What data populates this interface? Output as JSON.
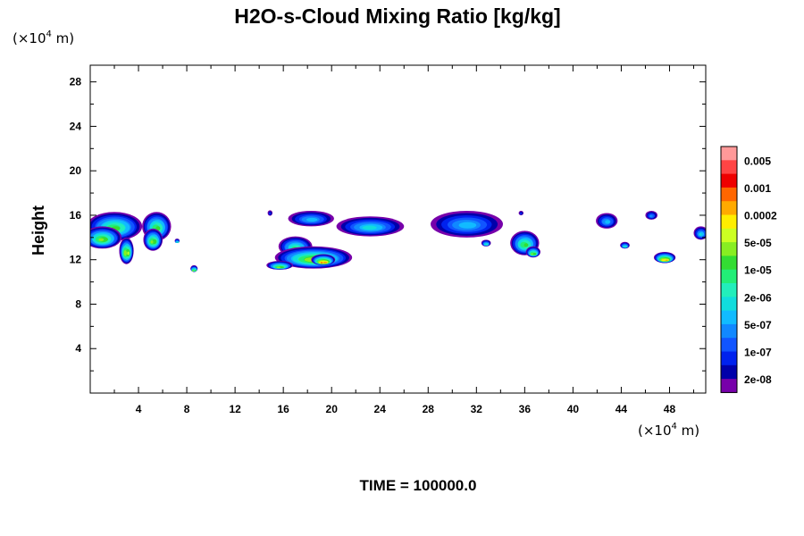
{
  "chart_data": {
    "type": "contour",
    "title": "H2O-s-Cloud Mixing Ratio [kg/kg]",
    "x_unit": {
      "prefix": "(×10",
      "exp": "4",
      "suffix": " m)"
    },
    "y_unit": {
      "prefix": "(×10",
      "exp": "4",
      "suffix": " m)"
    },
    "ylabel": "Height",
    "xlabel": "",
    "xlim": [
      0,
      51
    ],
    "ylim": [
      0,
      29.5
    ],
    "x_ticks": [
      "4",
      "8",
      "12",
      "16",
      "20",
      "24",
      "28",
      "32",
      "36",
      "40",
      "44",
      "48"
    ],
    "x_tick_values": [
      4,
      8,
      12,
      16,
      20,
      24,
      28,
      32,
      36,
      40,
      44,
      48
    ],
    "y_ticks": [
      "4",
      "8",
      "12",
      "16",
      "20",
      "24",
      "28"
    ],
    "y_tick_values": [
      4,
      8,
      12,
      16,
      20,
      24,
      28
    ],
    "time_label": "TIME = 100000.0",
    "legend": {
      "labels": [
        "0.005",
        "0.001",
        "0.0002",
        "5e-05",
        "1e-05",
        "2e-06",
        "5e-07",
        "1e-07",
        "2e-08"
      ],
      "colors": [
        "#ff9999",
        "#ff4444",
        "#ee0000",
        "#ff6600",
        "#ffaa00",
        "#ffee00",
        "#ccff22",
        "#88ee22",
        "#33dd33",
        "#22ee77",
        "#22eebb",
        "#11dddd",
        "#11bbff",
        "#1188ff",
        "#1155ff",
        "#0022ee",
        "#0000aa",
        "#7700aa"
      ]
    },
    "levels": [
      "#7700aa",
      "#0000aa",
      "#0022ee",
      "#1155ff",
      "#1188ff",
      "#11bbff",
      "#11dddd",
      "#22eebb",
      "#22ee77",
      "#33dd33",
      "#88ee22",
      "#ccff22",
      "#ffee00",
      "#ffaa00",
      "#ff6600",
      "#ee0000"
    ],
    "cloud_regions": [
      {
        "x": 2.0,
        "y": 15.0,
        "rx": 2.3,
        "ry": 1.3,
        "peak": 9
      },
      {
        "x": 1.0,
        "y": 14.0,
        "rx": 1.6,
        "ry": 1.0,
        "peak": 10
      },
      {
        "x": 3.0,
        "y": 12.8,
        "rx": 0.6,
        "ry": 1.2,
        "peak": 11
      },
      {
        "x": 5.5,
        "y": 15.0,
        "rx": 1.2,
        "ry": 1.3,
        "peak": 9
      },
      {
        "x": 5.2,
        "y": 13.8,
        "rx": 0.8,
        "ry": 1.0,
        "peak": 10
      },
      {
        "x": 7.2,
        "y": 13.7,
        "rx": 0.2,
        "ry": 0.2,
        "peak": 7
      },
      {
        "x": 8.6,
        "y": 11.2,
        "rx": 0.3,
        "ry": 0.3,
        "peak": 10
      },
      {
        "x": 14.9,
        "y": 16.2,
        "rx": 0.2,
        "ry": 0.25,
        "peak": 2
      },
      {
        "x": 18.3,
        "y": 15.7,
        "rx": 1.9,
        "ry": 0.7,
        "peak": 5
      },
      {
        "x": 17.0,
        "y": 13.2,
        "rx": 1.4,
        "ry": 0.9,
        "peak": 8
      },
      {
        "x": 18.5,
        "y": 12.2,
        "rx": 3.2,
        "ry": 1.0,
        "peak": 11
      },
      {
        "x": 19.3,
        "y": 12.0,
        "rx": 1.0,
        "ry": 0.5,
        "peak": 14
      },
      {
        "x": 15.7,
        "y": 11.5,
        "rx": 1.1,
        "ry": 0.4,
        "peak": 10
      },
      {
        "x": 23.2,
        "y": 15.0,
        "rx": 2.8,
        "ry": 0.9,
        "peak": 6
      },
      {
        "x": 31.2,
        "y": 15.2,
        "rx": 3.0,
        "ry": 1.2,
        "peak": 5
      },
      {
        "x": 35.7,
        "y": 16.2,
        "rx": 0.2,
        "ry": 0.2,
        "peak": 2
      },
      {
        "x": 36.0,
        "y": 13.5,
        "rx": 1.2,
        "ry": 1.1,
        "peak": 9
      },
      {
        "x": 36.7,
        "y": 12.7,
        "rx": 0.6,
        "ry": 0.5,
        "peak": 10
      },
      {
        "x": 32.8,
        "y": 13.5,
        "rx": 0.4,
        "ry": 0.3,
        "peak": 7
      },
      {
        "x": 42.8,
        "y": 15.5,
        "rx": 0.9,
        "ry": 0.7,
        "peak": 5
      },
      {
        "x": 44.3,
        "y": 13.3,
        "rx": 0.4,
        "ry": 0.3,
        "peak": 7
      },
      {
        "x": 46.5,
        "y": 16.0,
        "rx": 0.5,
        "ry": 0.4,
        "peak": 4
      },
      {
        "x": 47.6,
        "y": 12.2,
        "rx": 0.9,
        "ry": 0.5,
        "peak": 13
      },
      {
        "x": 50.6,
        "y": 14.4,
        "rx": 0.6,
        "ry": 0.6,
        "peak": 6
      }
    ]
  }
}
